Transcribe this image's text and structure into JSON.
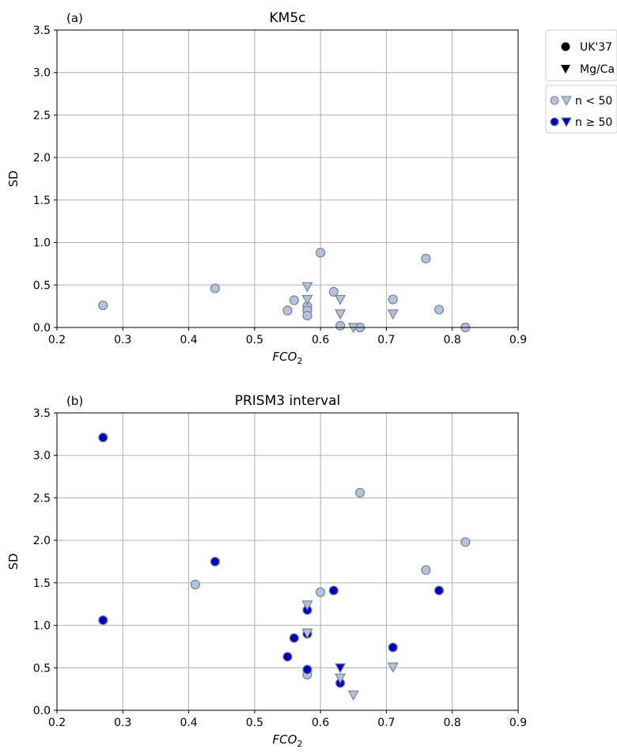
{
  "legend": {
    "marker_box": [
      {
        "label": "UK'37",
        "symbol": "circle"
      },
      {
        "label": "Mg/Ca",
        "symbol": "triangle-down"
      }
    ],
    "sample_box": [
      {
        "label": "n < 50",
        "fill": "#b0c4de"
      },
      {
        "label": "n ≥ 50",
        "fill": "#0000cd"
      }
    ]
  },
  "colors": {
    "n_lt_50": "#b0c4de",
    "n_ge_50": "#0000cd",
    "marker_edge": "#7f7f8f",
    "grid": "#b0b0b0"
  },
  "chart_data": [
    {
      "type": "scatter",
      "panel_label": "(a)",
      "title": "KM5c",
      "xlabel": "FCO",
      "xlabel_subscript": "2",
      "ylabel": "SD",
      "xlim": [
        0.2,
        0.9
      ],
      "ylim": [
        0.0,
        3.5
      ],
      "xticks": [
        "0.2",
        "0.3",
        "0.4",
        "0.5",
        "0.6",
        "0.7",
        "0.8",
        "0.9"
      ],
      "yticks": [
        "0.0",
        "0.5",
        "1.0",
        "1.5",
        "2.0",
        "2.5",
        "3.0",
        "3.5"
      ],
      "grid": true,
      "series": [
        {
          "name": "UK'37, n < 50",
          "marker": "circle",
          "group": "n_lt_50",
          "points": [
            [
              0.27,
              0.26
            ],
            [
              0.44,
              0.46
            ],
            [
              0.55,
              0.2
            ],
            [
              0.56,
              0.32
            ],
            [
              0.58,
              0.25
            ],
            [
              0.58,
              0.2
            ],
            [
              0.58,
              0.14
            ],
            [
              0.6,
              0.88
            ],
            [
              0.62,
              0.42
            ],
            [
              0.63,
              0.02
            ],
            [
              0.66,
              0.0
            ],
            [
              0.71,
              0.33
            ],
            [
              0.76,
              0.81
            ],
            [
              0.78,
              0.21
            ],
            [
              0.82,
              0.0
            ]
          ]
        },
        {
          "name": "Mg/Ca, n < 50",
          "marker": "triangle-down",
          "group": "n_lt_50",
          "points": [
            [
              0.58,
              0.48
            ],
            [
              0.58,
              0.33
            ],
            [
              0.63,
              0.33
            ],
            [
              0.63,
              0.16
            ],
            [
              0.65,
              0.0
            ],
            [
              0.71,
              0.16
            ]
          ]
        }
      ]
    },
    {
      "type": "scatter",
      "panel_label": "(b)",
      "title": "PRISM3 interval",
      "xlabel": "FCO",
      "xlabel_subscript": "2",
      "ylabel": "SD",
      "xlim": [
        0.2,
        0.9
      ],
      "ylim": [
        0.0,
        3.5
      ],
      "xticks": [
        "0.2",
        "0.3",
        "0.4",
        "0.5",
        "0.6",
        "0.7",
        "0.8",
        "0.9"
      ],
      "yticks": [
        "0.0",
        "0.5",
        "1.0",
        "1.5",
        "2.0",
        "2.5",
        "3.0",
        "3.5"
      ],
      "grid": true,
      "series": [
        {
          "name": "UK'37, n < 50",
          "marker": "circle",
          "group": "n_lt_50",
          "points": [
            [
              0.41,
              1.48
            ],
            [
              0.58,
              0.42
            ],
            [
              0.6,
              1.39
            ],
            [
              0.66,
              2.56
            ],
            [
              0.76,
              1.65
            ],
            [
              0.82,
              1.98
            ]
          ]
        },
        {
          "name": "UK'37, n ≥ 50",
          "marker": "circle",
          "group": "n_ge_50",
          "points": [
            [
              0.27,
              3.21
            ],
            [
              0.27,
              1.06
            ],
            [
              0.44,
              1.75
            ],
            [
              0.55,
              0.63
            ],
            [
              0.56,
              0.85
            ],
            [
              0.58,
              0.9
            ],
            [
              0.58,
              1.18
            ],
            [
              0.58,
              0.48
            ],
            [
              0.62,
              1.41
            ],
            [
              0.63,
              0.32
            ],
            [
              0.71,
              0.74
            ],
            [
              0.78,
              1.41
            ]
          ]
        },
        {
          "name": "Mg/Ca, n < 50",
          "marker": "triangle-down",
          "group": "n_lt_50",
          "points": [
            [
              0.58,
              1.24
            ],
            [
              0.58,
              0.91
            ],
            [
              0.63,
              0.38
            ],
            [
              0.65,
              0.18
            ],
            [
              0.71,
              0.51
            ]
          ]
        },
        {
          "name": "Mg/Ca, n ≥ 50",
          "marker": "triangle-down",
          "group": "n_ge_50",
          "points": [
            [
              0.63,
              0.5
            ]
          ]
        }
      ]
    }
  ]
}
